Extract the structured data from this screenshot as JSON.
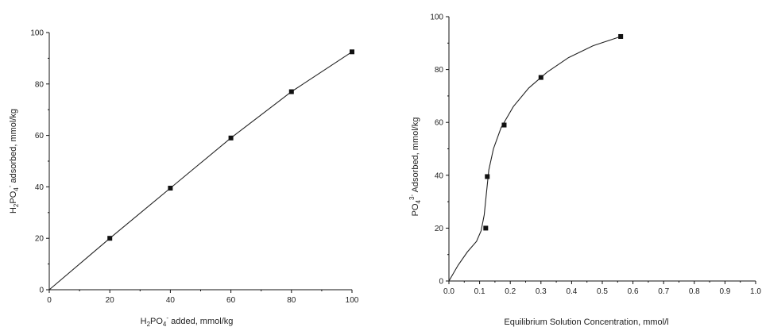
{
  "chart_data": [
    {
      "type": "line",
      "title": "",
      "xlabel": {
        "pre": "H",
        "sub1": "2",
        "mid": "PO",
        "sub2": "4",
        "sup": "-",
        "post": " added, mmol/kg"
      },
      "ylabel": {
        "pre": "H",
        "sub1": "2",
        "mid": "PO",
        "sub2": "4",
        "sup": "-",
        "post": " adsorbed, mmol/kg"
      },
      "xlim": [
        0,
        100
      ],
      "ylim": [
        0,
        100
      ],
      "xticks": [
        "0",
        "20",
        "40",
        "60",
        "80",
        "100"
      ],
      "yticks": [
        "0",
        "20",
        "40",
        "60",
        "80",
        "100"
      ],
      "grid": false,
      "x": [
        0,
        20,
        40,
        60,
        80,
        100
      ],
      "y": [
        0,
        20,
        39.5,
        59,
        77,
        92.5
      ],
      "markers": [
        {
          "x": 20,
          "y": 20
        },
        {
          "x": 40,
          "y": 39.5
        },
        {
          "x": 60,
          "y": 59
        },
        {
          "x": 80,
          "y": 77
        },
        {
          "x": 100,
          "y": 92.5
        }
      ]
    },
    {
      "type": "scatter",
      "title": "",
      "xlabel": {
        "text": "Equilibrium Solution Concentration, mmol/l"
      },
      "ylabel": {
        "pre": "PO",
        "sub": "4",
        "sup": "3-",
        "post": " Adsorbed, mmol/kg"
      },
      "xlim": [
        0,
        1.0
      ],
      "ylim": [
        0,
        100
      ],
      "xticks": [
        "0.0",
        "0.1",
        "0.2",
        "0.3",
        "0.4",
        "0.5",
        "0.6",
        "0.7",
        "0.8",
        "0.9",
        "1.0"
      ],
      "yticks": [
        "0",
        "20",
        "40",
        "60",
        "80",
        "100"
      ],
      "grid": false,
      "points": [
        {
          "x": 0.12,
          "y": 20
        },
        {
          "x": 0.125,
          "y": 39.5
        },
        {
          "x": 0.18,
          "y": 59
        },
        {
          "x": 0.3,
          "y": 77
        },
        {
          "x": 0.56,
          "y": 92.5
        }
      ],
      "fit_curve": [
        {
          "x": 0,
          "y": 0
        },
        {
          "x": 0.03,
          "y": 6
        },
        {
          "x": 0.06,
          "y": 11
        },
        {
          "x": 0.09,
          "y": 15
        },
        {
          "x": 0.105,
          "y": 19
        },
        {
          "x": 0.115,
          "y": 25
        },
        {
          "x": 0.122,
          "y": 33
        },
        {
          "x": 0.13,
          "y": 42
        },
        {
          "x": 0.145,
          "y": 50
        },
        {
          "x": 0.17,
          "y": 58
        },
        {
          "x": 0.21,
          "y": 66
        },
        {
          "x": 0.26,
          "y": 73
        },
        {
          "x": 0.32,
          "y": 79
        },
        {
          "x": 0.39,
          "y": 84.5
        },
        {
          "x": 0.47,
          "y": 89
        },
        {
          "x": 0.56,
          "y": 92.5
        }
      ]
    }
  ]
}
